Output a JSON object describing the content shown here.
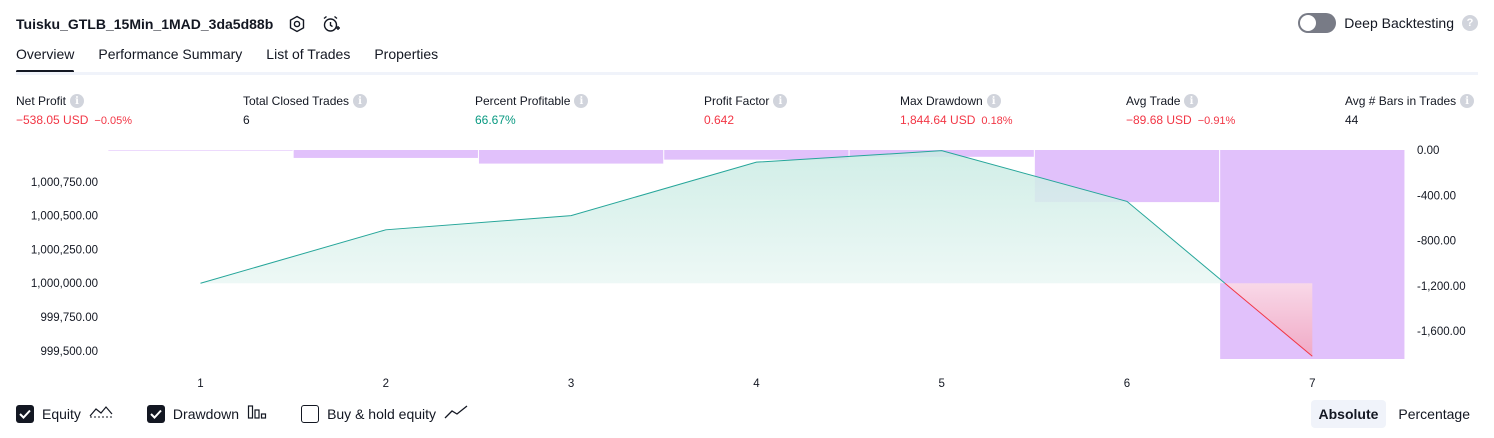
{
  "header": {
    "strategy_name": "Tuisku_GTLB_15Min_1MAD_3da5d88b",
    "settings_icon": "settings-hex-icon",
    "alert_icon": "add-alert-clock-icon"
  },
  "deep_backtesting": {
    "label": "Deep Backtesting",
    "enabled": false,
    "help": "?"
  },
  "tabs": [
    {
      "label": "Overview",
      "active": true
    },
    {
      "label": "Performance Summary",
      "active": false
    },
    {
      "label": "List of Trades",
      "active": false
    },
    {
      "label": "Properties",
      "active": false
    }
  ],
  "info_glyph": "i",
  "metrics": {
    "net_profit": {
      "label": "Net Profit",
      "value": "−538.05 USD",
      "pct": "−0.05%"
    },
    "total_closed_trades": {
      "label": "Total Closed Trades",
      "value": "6"
    },
    "percent_profitable": {
      "label": "Percent Profitable",
      "value": "66.67%"
    },
    "profit_factor": {
      "label": "Profit Factor",
      "value": "0.642"
    },
    "max_drawdown": {
      "label": "Max Drawdown",
      "value": "1,844.64 USD",
      "pct": "0.18%"
    },
    "avg_trade": {
      "label": "Avg Trade",
      "value": "−89.68 USD",
      "pct": "−0.91%"
    },
    "avg_bars": {
      "label": "Avg # Bars in Trades",
      "value": "44"
    }
  },
  "colors": {
    "equity_line": "#26a69a",
    "equity_fill": "#c9ebe3",
    "loss_line": "#f23645",
    "loss_fill": "#f2a7c0",
    "drawdown_bar": "#e1c1fb",
    "negative": "#f23645",
    "positive": "#089981"
  },
  "chart_data": {
    "type": "line",
    "x": [
      1,
      2,
      3,
      4,
      5,
      6,
      7
    ],
    "x_tick_labels": [
      "1",
      "2",
      "3",
      "4",
      "5",
      "6",
      "7"
    ],
    "series": [
      {
        "values": [
          1000000,
          1000395,
          1000500,
          1000895,
          1000980,
          1000605,
          999460
        ]
      }
    ],
    "baseline": 1000000,
    "ylim": [
      999440,
      1000985
    ],
    "y_ticks": [
      1000750,
      1000500,
      1000250,
      1000000,
      999750,
      999500
    ],
    "y_tick_labels": [
      "1,000,750.00",
      "1,000,500.00",
      "1,000,250.00",
      "1,000,000.00",
      "999,750.00",
      "999,500.00"
    ],
    "drawdown": {
      "x": [
        0.5,
        1.5,
        2.5,
        3.5,
        4.5,
        5.5,
        6.5
      ],
      "values": [
        -5,
        -70,
        -120,
        -85,
        -60,
        -460,
        -1845
      ],
      "ylim": [
        -1845,
        0
      ],
      "y_ticks": [
        0,
        -400,
        -800,
        -1200,
        -1600
      ],
      "y_tick_labels": [
        "0.00",
        "-400.00",
        "-800.00",
        "-1,200.00",
        "-1,600.00"
      ]
    }
  },
  "legend": [
    {
      "label": "Equity",
      "checked": true,
      "icon": "equity-line-icon"
    },
    {
      "label": "Drawdown",
      "checked": true,
      "icon": "drawdown-bars-icon"
    },
    {
      "label": "Buy & hold equity",
      "checked": false,
      "icon": "buy-hold-line-icon"
    }
  ],
  "scale_toggle": {
    "absolute": "Absolute",
    "percentage": "Percentage",
    "selected": "Absolute"
  }
}
